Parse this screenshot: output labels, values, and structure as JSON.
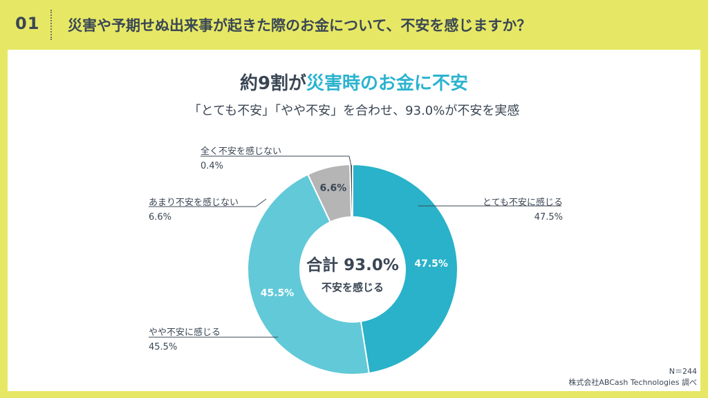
{
  "header": {
    "number": "01",
    "question": "災害や予期せぬ出来事が起きた際のお金について、不安を感じますか？"
  },
  "headline": {
    "prefix": "約9割が",
    "highlight": "災害時のお金に不安"
  },
  "subheadline": "「とても不安」「やや不安」を合わせ、93.0%が不安を実感",
  "chart_data": {
    "type": "pie",
    "donut": true,
    "categories": [
      "とても不安に感じる",
      "やや不安に感じる",
      "あまり不安を感じない",
      "全く不安を感じない"
    ],
    "values": [
      47.5,
      45.5,
      6.6,
      0.4
    ],
    "value_labels": [
      "47.5%",
      "45.5%",
      "6.6%",
      "0.4%"
    ],
    "slice_labels": [
      "47.5%",
      "45.5%",
      "6.6%",
      ""
    ],
    "colors": [
      "#29b2c9",
      "#62c9d8",
      "#b5b5b5",
      "#444444"
    ],
    "center_total": "合計 93.0%",
    "center_caption": "不安を感じる"
  },
  "footer": {
    "sample": "N＝244",
    "source": "株式会社ABCash Technologies 調べ"
  }
}
